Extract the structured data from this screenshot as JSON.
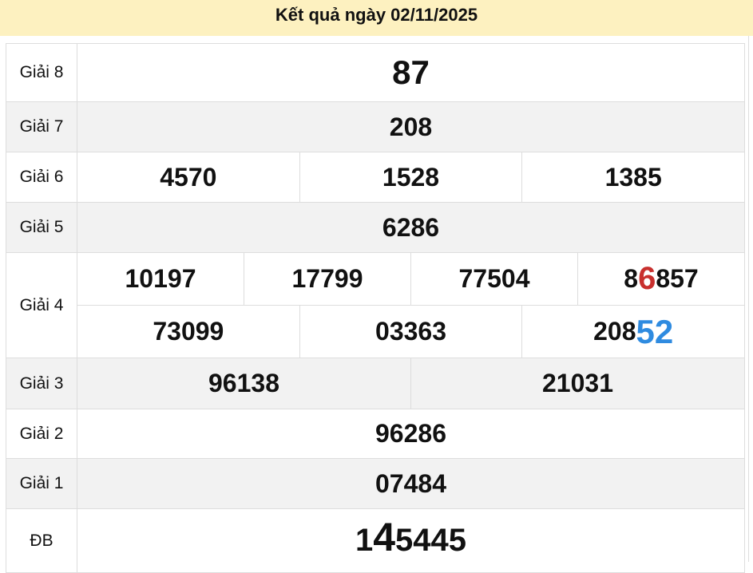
{
  "header": {
    "title": "Kết quả ngày 02/11/2025",
    "background": "#fdf1c0"
  },
  "colors": {
    "red": "#c8302e",
    "blue": "#2f8be0"
  },
  "prizes": {
    "g8": {
      "label": "Giải 8",
      "numbers": [
        "87"
      ]
    },
    "g7": {
      "label": "Giải 7",
      "numbers": [
        "208"
      ]
    },
    "g6": {
      "label": "Giải 6",
      "numbers": [
        "4570",
        "1528",
        "1385"
      ]
    },
    "g5": {
      "label": "Giải 5",
      "numbers": [
        "6286"
      ]
    },
    "g4": {
      "label": "Giải 4",
      "row1": [
        "10197",
        "17799",
        "77504"
      ],
      "row1_last": {
        "prefix": "8",
        "highlight": "6",
        "suffix": "857"
      },
      "row2": [
        "73099",
        "03363"
      ],
      "row2_last": {
        "prefix": "208",
        "highlight": "52"
      }
    },
    "g3": {
      "label": "Giải 3",
      "numbers": [
        "96138",
        "21031"
      ]
    },
    "g2": {
      "label": "Giải 2",
      "numbers": [
        "96286"
      ]
    },
    "g1": {
      "label": "Giải 1",
      "numbers": [
        "07484"
      ]
    },
    "db": {
      "label": "ĐB",
      "prefix": "1",
      "highlight": "4",
      "suffix": "5445"
    }
  }
}
